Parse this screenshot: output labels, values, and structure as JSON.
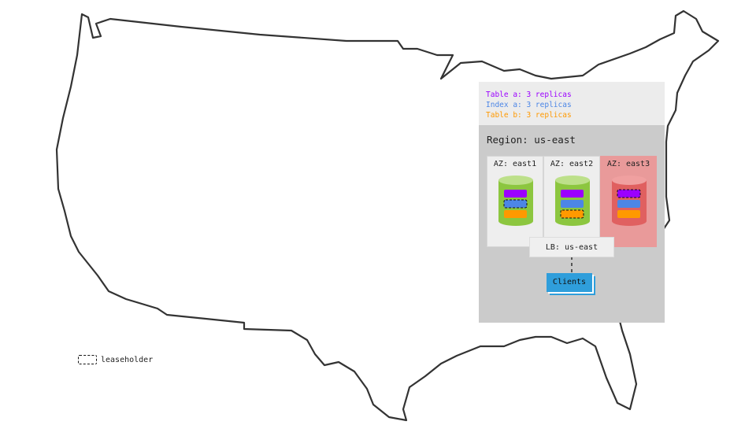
{
  "legend": {
    "items": [
      {
        "label": "Table a: 3 replicas",
        "color": "#9b00ff"
      },
      {
        "label": "Index a: 3 replicas",
        "color": "#4c86e6"
      },
      {
        "label": "Table b: 3 replicas",
        "color": "#ff9900"
      }
    ]
  },
  "region": {
    "label": "Region: us-east"
  },
  "azs": [
    {
      "label": "AZ: east1",
      "status": "up",
      "leaseholder": "Index a"
    },
    {
      "label": "AZ: east2",
      "status": "up",
      "leaseholder": "Table b"
    },
    {
      "label": "AZ: east3",
      "status": "down",
      "leaseholder": "Table a"
    }
  ],
  "lb": {
    "label": "LB: us-east"
  },
  "clients": {
    "label": "Clients"
  },
  "key": {
    "leaseholder": "leaseholder"
  },
  "colors": {
    "healthy": "#8cc63f",
    "failed": "#e06060"
  }
}
